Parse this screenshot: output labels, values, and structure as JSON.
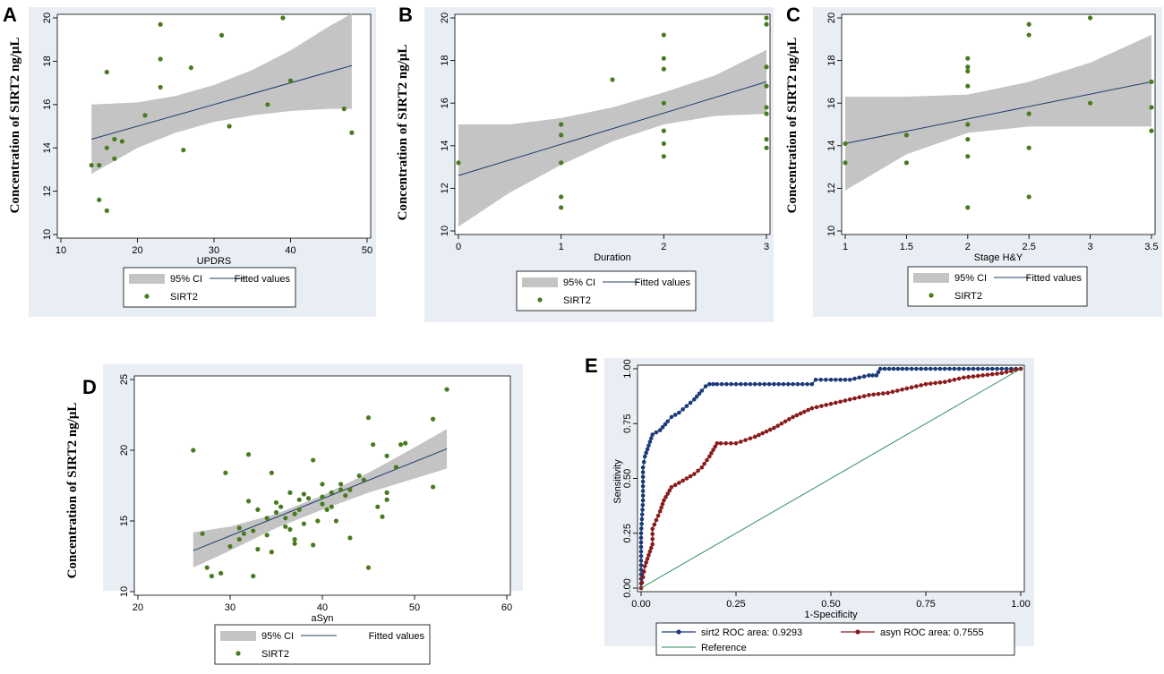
{
  "figure": {
    "y_axis_label": "Concentration of SIRT2 ng/μL"
  },
  "chart_data": [
    {
      "panel": "A",
      "type": "scatter",
      "xlabel": "UPDRS",
      "ylabel": "Concentration of SIRT2 ng/μL",
      "xlim": [
        10,
        50
      ],
      "ylim": [
        10,
        20
      ],
      "xticks": [
        10,
        20,
        30,
        40,
        50
      ],
      "yticks": [
        10,
        12,
        14,
        16,
        18,
        20
      ],
      "legend": [
        "95% CI",
        "Fitted values",
        "SIRT2"
      ],
      "fit": {
        "x": [
          14,
          48
        ],
        "y": [
          14.4,
          17.8
        ]
      },
      "ci": {
        "x": [
          14,
          20,
          25,
          30,
          35,
          40,
          45,
          48
        ],
        "lower": [
          12.8,
          14.0,
          14.7,
          15.2,
          15.5,
          15.7,
          15.8,
          15.8
        ],
        "upper": [
          16.0,
          16.1,
          16.4,
          16.9,
          17.6,
          18.5,
          19.6,
          20.2
        ]
      },
      "points": [
        [
          14,
          13.2
        ],
        [
          15,
          13.2
        ],
        [
          15,
          11.6
        ],
        [
          16,
          11.1
        ],
        [
          16,
          17.5
        ],
        [
          16,
          14.0
        ],
        [
          17,
          13.5
        ],
        [
          17,
          14.4
        ],
        [
          18,
          14.3
        ],
        [
          21,
          15.5
        ],
        [
          23,
          19.7
        ],
        [
          23,
          18.1
        ],
        [
          23,
          16.8
        ],
        [
          26,
          13.9
        ],
        [
          27,
          17.7
        ],
        [
          31,
          19.2
        ],
        [
          32,
          15.0
        ],
        [
          37,
          16.0
        ],
        [
          39,
          20.0
        ],
        [
          40,
          17.1
        ],
        [
          47,
          15.8
        ],
        [
          48,
          14.7
        ]
      ]
    },
    {
      "panel": "B",
      "type": "scatter",
      "xlabel": "Duration",
      "ylabel": "Concentration of SIRT2 ng/μL",
      "xlim": [
        0,
        3
      ],
      "ylim": [
        10,
        20
      ],
      "xticks": [
        0,
        1,
        2,
        3
      ],
      "yticks": [
        10,
        12,
        14,
        16,
        18,
        20
      ],
      "legend": [
        "95% CI",
        "Fitted values",
        "SIRT2"
      ],
      "fit": {
        "x": [
          0,
          3
        ],
        "y": [
          12.6,
          17.0
        ]
      },
      "ci": {
        "x": [
          0,
          0.5,
          1,
          1.5,
          2,
          2.5,
          3
        ],
        "lower": [
          10.2,
          11.8,
          13.1,
          14.2,
          15.0,
          15.4,
          15.5
        ],
        "upper": [
          15.0,
          15.0,
          15.3,
          15.8,
          16.5,
          17.3,
          18.5
        ]
      },
      "points": [
        [
          0,
          13.2
        ],
        [
          1,
          15.0
        ],
        [
          1,
          14.5
        ],
        [
          1,
          13.2
        ],
        [
          1,
          11.6
        ],
        [
          1,
          11.1
        ],
        [
          1.5,
          17.1
        ],
        [
          2,
          19.2
        ],
        [
          2,
          18.1
        ],
        [
          2,
          17.6
        ],
        [
          2,
          16.0
        ],
        [
          2,
          14.7
        ],
        [
          2,
          14.1
        ],
        [
          2,
          13.5
        ],
        [
          3,
          20.0
        ],
        [
          3,
          19.7
        ],
        [
          3,
          17.7
        ],
        [
          3,
          16.8
        ],
        [
          3,
          15.8
        ],
        [
          3,
          15.5
        ],
        [
          3,
          14.3
        ],
        [
          3,
          13.9
        ]
      ]
    },
    {
      "panel": "C",
      "type": "scatter",
      "xlabel": "Stage H&Y",
      "ylabel": "Concentration of SIRT2 ng/μL",
      "xlim": [
        1,
        3.5
      ],
      "ylim": [
        10,
        20
      ],
      "xticks": [
        1,
        1.5,
        2,
        2.5,
        3,
        3.5
      ],
      "yticks": [
        10,
        12,
        14,
        16,
        18,
        20
      ],
      "legend": [
        "95% CI",
        "Fitted values",
        "SIRT2"
      ],
      "fit": {
        "x": [
          1,
          3.5
        ],
        "y": [
          14.1,
          17.0
        ]
      },
      "ci": {
        "x": [
          1,
          1.5,
          2,
          2.5,
          3,
          3.5
        ],
        "lower": [
          11.9,
          13.6,
          14.6,
          14.9,
          14.9,
          14.9
        ],
        "upper": [
          16.3,
          16.3,
          16.4,
          17.0,
          17.9,
          19.2
        ]
      },
      "points": [
        [
          1,
          14.1
        ],
        [
          1,
          13.2
        ],
        [
          1.5,
          14.5
        ],
        [
          1.5,
          13.2
        ],
        [
          2,
          18.1
        ],
        [
          2,
          17.7
        ],
        [
          2,
          17.5
        ],
        [
          2,
          16.8
        ],
        [
          2,
          15.0
        ],
        [
          2,
          14.3
        ],
        [
          2,
          13.5
        ],
        [
          2,
          11.1
        ],
        [
          2.5,
          19.7
        ],
        [
          2.5,
          19.2
        ],
        [
          2.5,
          15.5
        ],
        [
          2.5,
          13.9
        ],
        [
          2.5,
          11.6
        ],
        [
          3,
          20.0
        ],
        [
          3,
          16.0
        ],
        [
          3.5,
          17.0
        ],
        [
          3.5,
          15.8
        ],
        [
          3.5,
          14.7
        ]
      ]
    },
    {
      "panel": "D",
      "type": "scatter",
      "xlabel": "aSyn",
      "ylabel": "Concentration of SIRT2 ng/μL",
      "xlim": [
        20,
        60
      ],
      "ylim": [
        10,
        25
      ],
      "xticks": [
        20,
        30,
        40,
        50,
        60
      ],
      "yticks": [
        10,
        15,
        20,
        25
      ],
      "legend": [
        "95% CI",
        "Fitted values",
        "SIRT2"
      ],
      "fit": {
        "x": [
          26,
          53.5
        ],
        "y": [
          12.9,
          20.1
        ]
      },
      "ci": {
        "x": [
          26,
          30,
          35,
          40,
          45,
          50,
          53.5
        ],
        "lower": [
          11.7,
          12.9,
          14.5,
          15.8,
          17.0,
          18.0,
          18.7
        ],
        "upper": [
          14.2,
          14.6,
          15.5,
          16.8,
          18.4,
          20.2,
          21.5
        ]
      },
      "points": [
        [
          26,
          20.0
        ],
        [
          27,
          14.1
        ],
        [
          27.5,
          11.7
        ],
        [
          28,
          11.1
        ],
        [
          29,
          11.3
        ],
        [
          29.5,
          18.4
        ],
        [
          30,
          13.2
        ],
        [
          31,
          13.7
        ],
        [
          31,
          14.5
        ],
        [
          31.5,
          14.1
        ],
        [
          32,
          16.4
        ],
        [
          32,
          19.7
        ],
        [
          32.5,
          14.3
        ],
        [
          32.5,
          11.1
        ],
        [
          33,
          15.8
        ],
        [
          33,
          13.0
        ],
        [
          34,
          15.2
        ],
        [
          34,
          14.0
        ],
        [
          34.5,
          18.4
        ],
        [
          34.5,
          12.8
        ],
        [
          35,
          15.6
        ],
        [
          35,
          16.3
        ],
        [
          35.5,
          16.0
        ],
        [
          36,
          15.2
        ],
        [
          36,
          14.6
        ],
        [
          36.5,
          17.0
        ],
        [
          36.5,
          14.4
        ],
        [
          37,
          15.5
        ],
        [
          37,
          13.4
        ],
        [
          37,
          13.7
        ],
        [
          37.5,
          15.8
        ],
        [
          37.5,
          16.5
        ],
        [
          38,
          16.9
        ],
        [
          38,
          14.8
        ],
        [
          38.5,
          16.6
        ],
        [
          39,
          19.3
        ],
        [
          39,
          13.3
        ],
        [
          39.5,
          15.0
        ],
        [
          40,
          16.7
        ],
        [
          40,
          17.6
        ],
        [
          40,
          16.2
        ],
        [
          40.5,
          15.8
        ],
        [
          41,
          17.0
        ],
        [
          41,
          16.0
        ],
        [
          41.5,
          15.0
        ],
        [
          42,
          17.6
        ],
        [
          42,
          17.2
        ],
        [
          42.5,
          16.8
        ],
        [
          43,
          17.2
        ],
        [
          43,
          13.8
        ],
        [
          44,
          18.2
        ],
        [
          44.5,
          17.9
        ],
        [
          45,
          22.3
        ],
        [
          45,
          11.7
        ],
        [
          45.5,
          20.4
        ],
        [
          46,
          16.0
        ],
        [
          46.5,
          15.3
        ],
        [
          47,
          17.0
        ],
        [
          47,
          19.6
        ],
        [
          48,
          18.8
        ],
        [
          48.5,
          20.4
        ],
        [
          49,
          20.5
        ],
        [
          52,
          22.2
        ],
        [
          52,
          17.4
        ],
        [
          53.5,
          24.3
        ],
        [
          47,
          16.5
        ]
      ]
    },
    {
      "panel": "E",
      "type": "line",
      "xlabel": "1-Specificity",
      "ylabel": "Sensitivity",
      "xlim": [
        0,
        1
      ],
      "ylim": [
        0,
        1
      ],
      "xticks": [
        "0.00",
        "0.25",
        "0.50",
        "0.75",
        "1.00"
      ],
      "yticks": [
        "0.00",
        "0.25",
        "0.50",
        "0.75",
        "1.00"
      ],
      "legend": [
        "sirt2 ROC area: 0.9293",
        "asyn ROC area: 0.7555",
        "Reference"
      ],
      "series": [
        {
          "name": "sirt2 ROC area: 0.9293",
          "x": [
            0,
            0,
            0.005,
            0.005,
            0.01,
            0.02,
            0.03,
            0.05,
            0.07,
            0.08,
            0.1,
            0.12,
            0.14,
            0.16,
            0.17,
            0.18,
            0.2,
            0.25,
            0.3,
            0.35,
            0.4,
            0.45,
            0.46,
            0.5,
            0.55,
            0.6,
            0.62,
            0.63,
            0.7,
            0.8,
            0.9,
            0.95,
            1.0
          ],
          "y": [
            0,
            0.25,
            0.4,
            0.55,
            0.6,
            0.65,
            0.7,
            0.72,
            0.76,
            0.78,
            0.8,
            0.83,
            0.86,
            0.9,
            0.92,
            0.93,
            0.93,
            0.93,
            0.93,
            0.93,
            0.93,
            0.93,
            0.95,
            0.95,
            0.95,
            0.97,
            0.97,
            1.0,
            1.0,
            1.0,
            1.0,
            1.0,
            1.0
          ]
        },
        {
          "name": "asyn ROC area: 0.7555",
          "x": [
            0,
            0.005,
            0.01,
            0.02,
            0.03,
            0.03,
            0.05,
            0.06,
            0.07,
            0.08,
            0.1,
            0.12,
            0.14,
            0.16,
            0.18,
            0.19,
            0.2,
            0.21,
            0.25,
            0.3,
            0.35,
            0.4,
            0.45,
            0.5,
            0.55,
            0.6,
            0.65,
            0.7,
            0.75,
            0.8,
            0.85,
            0.9,
            0.95,
            1.0
          ],
          "y": [
            0,
            0.05,
            0.1,
            0.15,
            0.2,
            0.27,
            0.35,
            0.4,
            0.43,
            0.46,
            0.48,
            0.5,
            0.52,
            0.55,
            0.6,
            0.63,
            0.66,
            0.66,
            0.66,
            0.69,
            0.73,
            0.78,
            0.82,
            0.84,
            0.86,
            0.88,
            0.89,
            0.91,
            0.93,
            0.94,
            0.96,
            0.97,
            0.98,
            1.0
          ]
        },
        {
          "name": "Reference",
          "x": [
            0,
            1
          ],
          "y": [
            0,
            1
          ]
        }
      ]
    }
  ]
}
